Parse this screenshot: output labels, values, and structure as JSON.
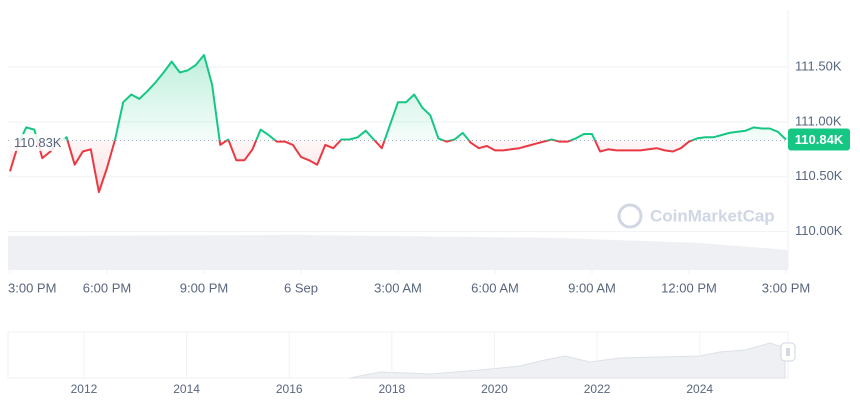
{
  "chart_data": {
    "type": "line",
    "watermark": "CoinMarketCap",
    "baseline": {
      "value": 110.83,
      "label": "110.83K"
    },
    "current": {
      "value": 110.84,
      "label": "110.84K"
    },
    "up_color": "#16c784",
    "down_color": "#ea3943",
    "x": [
      0,
      0.25,
      0.5,
      0.75,
      1,
      1.25,
      1.5,
      1.75,
      2,
      2.25,
      2.5,
      2.75,
      3,
      3.25,
      3.5,
      3.75,
      4,
      4.25,
      4.5,
      4.75,
      5,
      5.25,
      5.5,
      5.75,
      6,
      6.25,
      6.5,
      6.75,
      7,
      7.25,
      7.5,
      7.75,
      8,
      8.25,
      8.5,
      8.75,
      9,
      9.25,
      9.5,
      9.75,
      10,
      10.25,
      10.5,
      10.75,
      11,
      11.25,
      11.5,
      11.75,
      12,
      12.25,
      12.5,
      12.75,
      13,
      13.25,
      13.5,
      13.75,
      14,
      14.25,
      14.5,
      14.75,
      15,
      15.25,
      15.5,
      15.75,
      16,
      16.25,
      16.5,
      16.75,
      17,
      17.25,
      17.5,
      17.75,
      18,
      18.25,
      18.5,
      18.75,
      19,
      19.25,
      19.5,
      19.75,
      20,
      20.25,
      20.5,
      20.75,
      21,
      21.25,
      21.5,
      21.75,
      22,
      22.25,
      22.5,
      22.75,
      23,
      23.25,
      23.5,
      23.75,
      24
    ],
    "series": [
      {
        "values": [
          110.55,
          110.79,
          110.95,
          110.93,
          110.67,
          110.73,
          110.82,
          110.86,
          110.61,
          110.73,
          110.75,
          110.36,
          110.58,
          110.84,
          111.18,
          111.25,
          111.21,
          111.28,
          111.36,
          111.45,
          111.55,
          111.45,
          111.47,
          111.52,
          111.61,
          111.34,
          110.79,
          110.84,
          110.65,
          110.65,
          110.75,
          110.93,
          110.88,
          110.82,
          110.82,
          110.79,
          110.68,
          110.65,
          110.61,
          110.79,
          110.76,
          110.84,
          110.84,
          110.86,
          110.92,
          110.84,
          110.76,
          110.97,
          111.18,
          111.18,
          111.25,
          111.13,
          111.06,
          110.85,
          110.82,
          110.84,
          110.9,
          110.81,
          110.76,
          110.78,
          110.74,
          110.74,
          110.75,
          110.76,
          110.78,
          110.8,
          110.82,
          110.84,
          110.82,
          110.82,
          110.85,
          110.89,
          110.89,
          110.73,
          110.75,
          110.74,
          110.74,
          110.74,
          110.74,
          110.75,
          110.76,
          110.74,
          110.73,
          110.76,
          110.82,
          110.85,
          110.86,
          110.86,
          110.88,
          110.9,
          110.91,
          110.92,
          110.95,
          110.94,
          110.94,
          110.91,
          110.84
        ]
      }
    ],
    "xlim": [
      0,
      24
    ],
    "xticks": [
      {
        "value": 0,
        "label": "3:00 PM"
      },
      {
        "value": 3,
        "label": "6:00 PM"
      },
      {
        "value": 6,
        "label": "9:00 PM"
      },
      {
        "value": 9,
        "label": "6 Sep"
      },
      {
        "value": 12,
        "label": "3:00 AM"
      },
      {
        "value": 15,
        "label": "6:00 AM"
      },
      {
        "value": 18,
        "label": "9:00 AM"
      },
      {
        "value": 21,
        "label": "12:00 PM"
      },
      {
        "value": 24,
        "label": "3:00 PM"
      }
    ],
    "ylim": [
      109.65,
      112.02
    ],
    "yticks": [
      {
        "value": 110,
        "label": "110.00K"
      },
      {
        "value": 110.5,
        "label": "110.50K"
      },
      {
        "value": 111,
        "label": "111.00K"
      },
      {
        "value": 111.5,
        "label": "111.50K"
      }
    ],
    "navigator": {
      "xlim": [
        2010.52,
        2025.72
      ],
      "xticks": [
        2012,
        2014,
        2016,
        2018,
        2020,
        2022,
        2024
      ]
    }
  }
}
